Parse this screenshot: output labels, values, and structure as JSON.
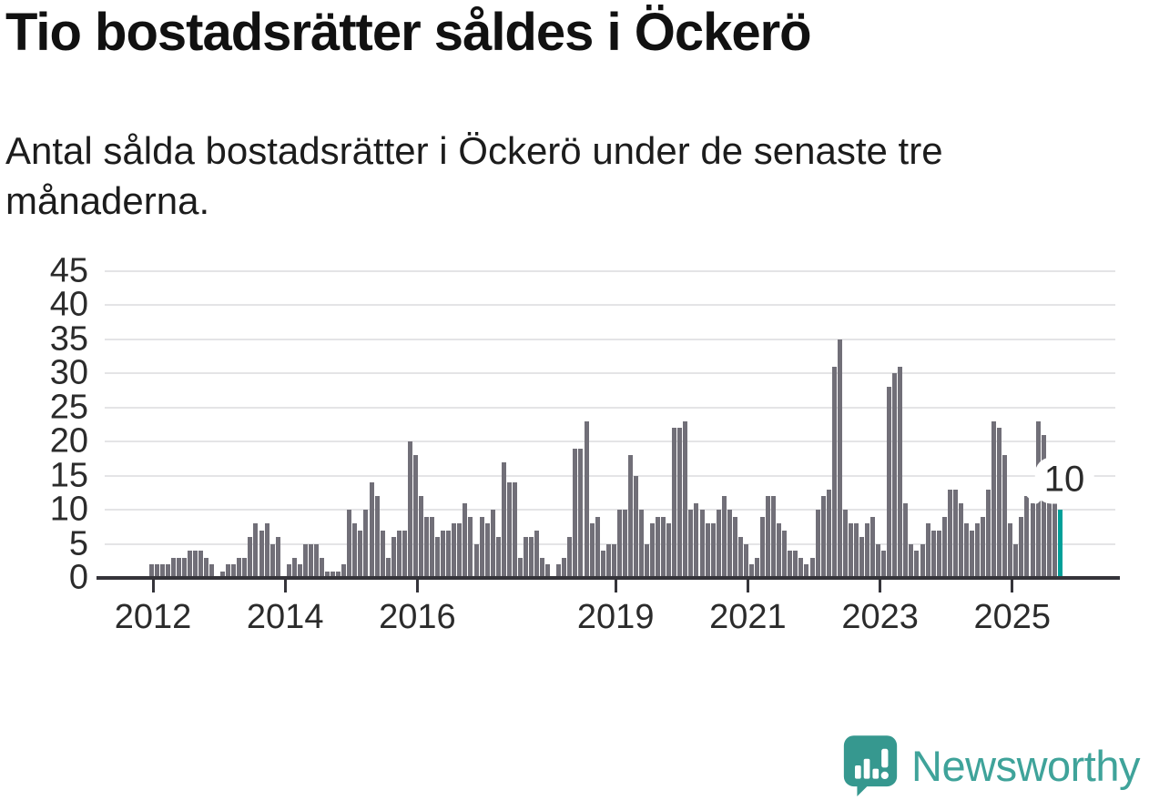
{
  "header": {
    "title": "Tio bostadsrätter såldes i Öckerö",
    "subtitle": "Antal sålda bostadsrätter i Öckerö under de senaste tre månaderna."
  },
  "branding": {
    "logo_text": "Newsworthy",
    "logo_icon": "newsworthy-bars-speech-bubble",
    "logo_color": "#3FA39A",
    "icon_color": "#36988F"
  },
  "chart_data": {
    "type": "bar",
    "title": "Tio bostadsrätter såldes i Öckerö",
    "subtitle": "Antal sålda bostadsrätter i Öckerö under de senaste tre månaderna.",
    "start_month": "2012-01",
    "end_month": "2025-10",
    "values": [
      2,
      2,
      2,
      2,
      3,
      3,
      3,
      4,
      4,
      4,
      3,
      2,
      0,
      1,
      2,
      2,
      3,
      3,
      6,
      8,
      7,
      8,
      5,
      6,
      0,
      2,
      3,
      2,
      5,
      5,
      5,
      3,
      1,
      1,
      1,
      2,
      10,
      8,
      7,
      10,
      14,
      12,
      7,
      3,
      6,
      7,
      7,
      20,
      18,
      12,
      9,
      9,
      6,
      7,
      7,
      8,
      8,
      11,
      9,
      5,
      9,
      8,
      10,
      6,
      17,
      14,
      14,
      3,
      6,
      6,
      7,
      3,
      2,
      0,
      2,
      3,
      6,
      19,
      19,
      23,
      8,
      9,
      4,
      5,
      5,
      10,
      10,
      18,
      15,
      10,
      5,
      8,
      9,
      9,
      8,
      22,
      22,
      23,
      10,
      11,
      10,
      8,
      8,
      10,
      12,
      10,
      9,
      6,
      5,
      2,
      3,
      9,
      12,
      12,
      8,
      7,
      4,
      4,
      3,
      2,
      3,
      10,
      12,
      13,
      31,
      35,
      10,
      8,
      8,
      6,
      8,
      9,
      5,
      4,
      28,
      30,
      31,
      11,
      5,
      4,
      5,
      8,
      7,
      7,
      9,
      13,
      13,
      11,
      8,
      7,
      8,
      9,
      13,
      23,
      22,
      18,
      8,
      5,
      9,
      12,
      11,
      23,
      21,
      12,
      12,
      10
    ],
    "highlight": {
      "index": 165,
      "label": "10",
      "color": "#00A099"
    },
    "bar_color": "#716F78",
    "ylim": [
      0,
      45
    ],
    "y_ticks": [
      0,
      5,
      10,
      15,
      20,
      25,
      30,
      35,
      40,
      45
    ],
    "x_ticks": [
      {
        "label": "2012",
        "month_index": 0
      },
      {
        "label": "2014",
        "month_index": 24
      },
      {
        "label": "2016",
        "month_index": 48
      },
      {
        "label": "2019",
        "month_index": 84
      },
      {
        "label": "2021",
        "month_index": 108
      },
      {
        "label": "2023",
        "month_index": 132
      },
      {
        "label": "2025",
        "month_index": 156
      }
    ],
    "grid": true,
    "legend": null
  }
}
